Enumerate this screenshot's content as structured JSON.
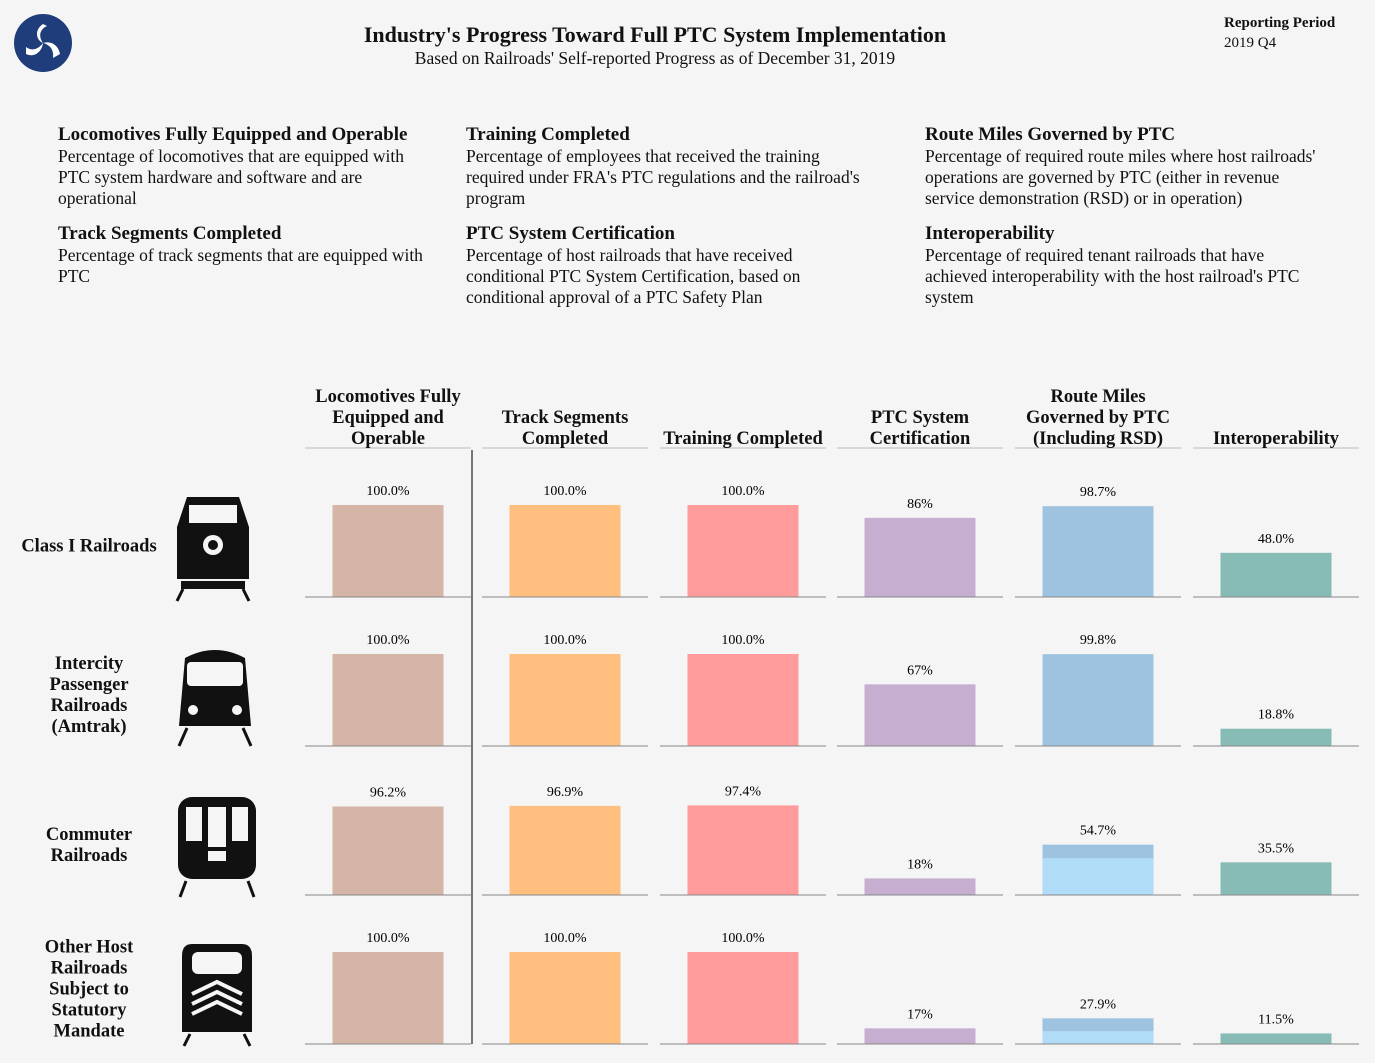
{
  "header": {
    "title": "Industry's Progress Toward Full PTC System Implementation",
    "subtitle": "Based on Railroads' Self-reported Progress as of December 31, 2019",
    "period_label": "Reporting Period",
    "period": "2019 Q4"
  },
  "definitions": [
    {
      "title": "Locomotives Fully Equipped and Operable",
      "text": "Percentage of locomotives that are equipped with PTC system hardware and software and are operational"
    },
    {
      "title": "Track Segments Completed",
      "text": "Percentage of track segments that are equipped with PTC"
    },
    {
      "title": "Training Completed",
      "text": "Percentage of employees that received the training required under FRA's PTC regulations and the railroad's program"
    },
    {
      "title": "PTC System Certification",
      "text": "Percentage of host railroads that have received conditional PTC System Certification, based on conditional approval of a PTC Safety Plan"
    },
    {
      "title": "Route Miles Governed by PTC",
      "text": "Percentage of required route miles where host railroads' operations are governed by PTC (either in revenue service demonstration (RSD) or in operation)"
    },
    {
      "title": "Interoperability",
      "text": "Percentage of required tenant railroads that have achieved interoperability with the host railroad's PTC system"
    }
  ],
  "chart_data": {
    "type": "bar-grid",
    "categories": [
      "Class I Railroads",
      "Intercity Passenger Railroads (Amtrak)",
      "Commuter Railroads",
      "Other Host Railroads Subject to Statutory Mandate"
    ],
    "ylim": [
      0,
      100
    ],
    "series": [
      {
        "name": "Locomotives Fully Equipped and Operable",
        "color": "#d4b5a6",
        "values": [
          100.0,
          100.0,
          96.2,
          100.0
        ],
        "value_labels": [
          "100.0%",
          "100.0%",
          "96.2%",
          "100.0%"
        ]
      },
      {
        "name": "Track Segments Completed",
        "color": "#ffbf7f",
        "values": [
          100.0,
          100.0,
          96.9,
          100.0
        ],
        "value_labels": [
          "100.0%",
          "100.0%",
          "96.9%",
          "100.0%"
        ]
      },
      {
        "name": "Training Completed",
        "color": "#ff9c9b",
        "values": [
          100.0,
          100.0,
          97.4,
          100.0
        ],
        "value_labels": [
          "100.0%",
          "100.0%",
          "97.4%",
          "100.0%"
        ]
      },
      {
        "name": "PTC System Certification",
        "color": "#c5aed0",
        "values": [
          86,
          67,
          18,
          17
        ],
        "value_labels": [
          "86%",
          "67%",
          "18%",
          "17%"
        ]
      },
      {
        "name": "Route Miles Governed by PTC (Including RSD)",
        "color": "#9dc3e0",
        "light_color": "#b0dcf7",
        "values": [
          98.7,
          99.8,
          54.7,
          27.9
        ],
        "value_labels": [
          "98.7%",
          "99.8%",
          "54.7%",
          "27.9%"
        ],
        "in_operation_values": [
          null,
          null,
          40,
          14
        ]
      },
      {
        "name": "Interoperability",
        "color": "#86bcb5",
        "values": [
          48.0,
          18.8,
          35.5,
          11.5
        ],
        "value_labels": [
          "48.0%",
          "18.8%",
          "35.5%",
          "11.5%"
        ]
      }
    ]
  }
}
